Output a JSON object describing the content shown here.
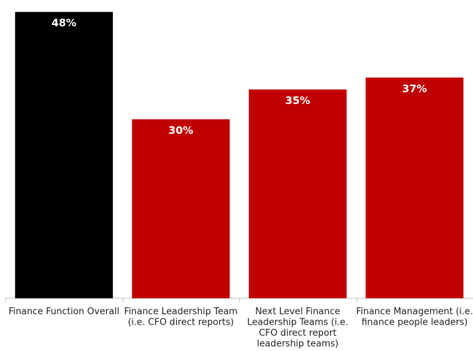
{
  "chart_data": {
    "type": "bar",
    "categories": [
      "Finance Function Overall",
      "Finance Leadership Team (i.e. CFO direct reports)",
      "Next Level Finance Leadership Teams (i.e. CFO direct report leadership teams)",
      "Finance Management (i.e. finance people leaders)"
    ],
    "category_lines": [
      [
        "Finance Function Overall"
      ],
      [
        "Finance Leadership Team",
        "(i.e. CFO direct reports)"
      ],
      [
        "Next Level Finance",
        "Leadership Teams (i.e.",
        "CFO direct report",
        "leadership teams)"
      ],
      [
        "Finance Management (i.e.",
        "finance people leaders)"
      ]
    ],
    "values": [
      48,
      30,
      35,
      37
    ],
    "value_labels": [
      "48%",
      "30%",
      "35%",
      "37%"
    ],
    "colors": [
      "#000000",
      "#c00000",
      "#c00000",
      "#c00000"
    ],
    "title": "",
    "xlabel": "",
    "ylabel": "",
    "ylim": [
      0,
      50
    ],
    "grid": false,
    "legend": "none"
  }
}
